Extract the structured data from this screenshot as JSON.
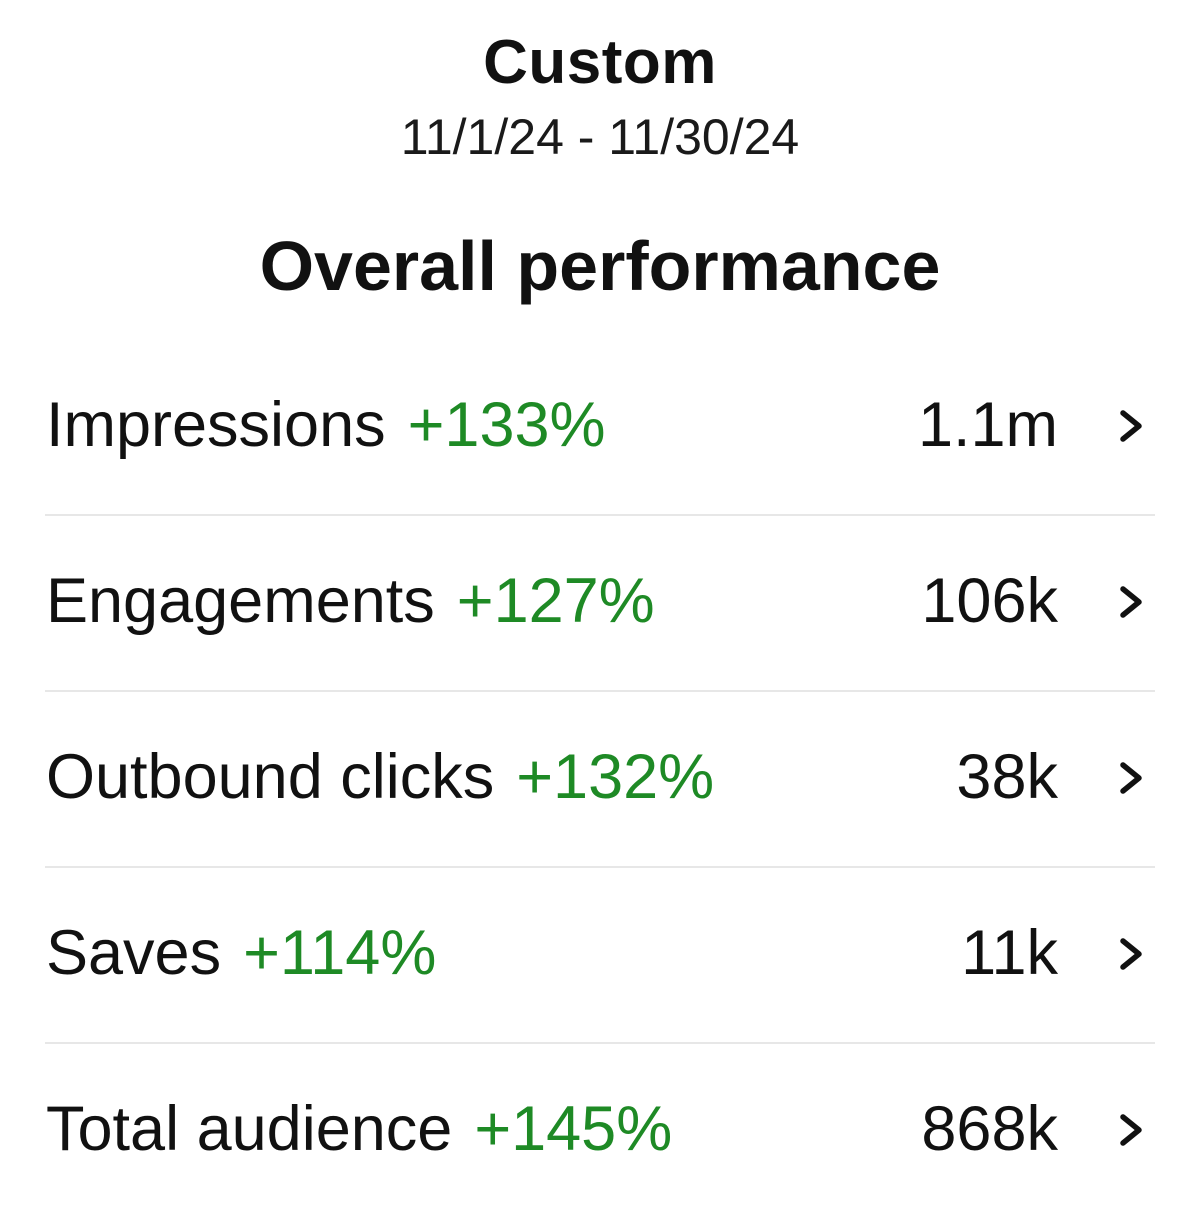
{
  "date_range": {
    "name": "Custom",
    "dates": "11/1/24 - 11/30/24"
  },
  "section": {
    "title": "Overall performance"
  },
  "colors": {
    "positive_change": "#1e8a25",
    "text": "#111111",
    "divider": "#e7e7e7"
  },
  "metrics": [
    {
      "label": "Impressions",
      "change": "+133%",
      "value": "1.1m",
      "icon": "chevron-right-icon"
    },
    {
      "label": "Engagements",
      "change": "+127%",
      "value": "106k",
      "icon": "chevron-right-icon"
    },
    {
      "label": "Outbound clicks",
      "change": "+132%",
      "value": "38k",
      "icon": "chevron-right-icon"
    },
    {
      "label": "Saves",
      "change": "+114%",
      "value": "11k",
      "icon": "chevron-right-icon"
    },
    {
      "label": "Total audience",
      "change": "+145%",
      "value": "868k",
      "icon": "chevron-right-icon"
    }
  ]
}
